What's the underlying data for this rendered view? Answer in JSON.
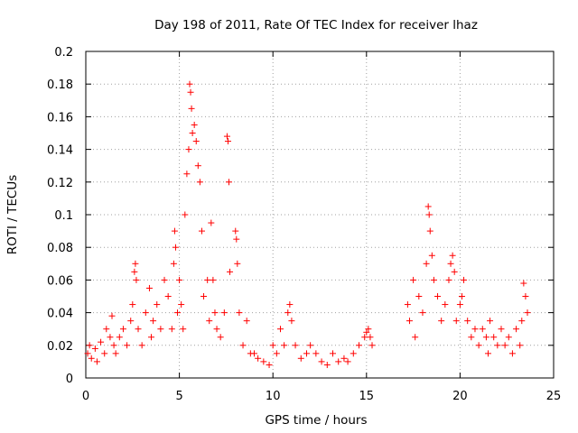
{
  "chart_data": {
    "type": "scatter",
    "title": "Day 198 of 2011, Rate Of TEC Index for receiver lhaz",
    "xlabel": "GPS time / hours",
    "ylabel": "ROTI / TECUs",
    "xlim": [
      0,
      25
    ],
    "ylim": [
      0,
      0.2
    ],
    "xticks": [
      "0",
      "5",
      "10",
      "15",
      "20",
      "25"
    ],
    "yticks": [
      "0",
      "0.02",
      "0.04",
      "0.06",
      "0.08",
      "0.1",
      "0.12",
      "0.14",
      "0.16",
      "0.18",
      "0.2"
    ],
    "grid": true,
    "marker": "+",
    "colors": {
      "series": "#ff0000",
      "grid": "#a0a0a0",
      "axis": "#000000"
    },
    "series": [
      {
        "x": [
          0.1,
          0.2,
          0.3,
          0.5,
          0.6,
          0.8,
          1.0,
          1.1,
          1.3,
          1.4,
          1.5,
          1.6,
          1.8,
          2.0,
          2.2,
          2.4,
          2.5,
          2.6,
          2.65,
          2.7,
          2.8,
          3.0,
          3.2,
          3.4,
          3.5,
          3.6,
          3.8,
          4.0,
          4.2,
          4.4,
          4.6,
          4.7,
          4.75,
          4.8,
          4.9,
          5.0,
          5.1,
          5.2,
          5.3,
          5.4,
          5.5,
          5.55,
          5.6,
          5.65,
          5.7,
          5.8,
          5.9,
          6.0,
          6.1,
          6.2,
          6.3,
          6.5,
          6.6,
          6.7,
          6.8,
          6.9,
          7.0,
          7.2,
          7.4,
          7.55,
          7.6,
          7.65,
          7.7,
          8.0,
          8.05,
          8.1,
          8.2,
          8.4,
          8.6,
          8.8,
          9.0,
          9.2,
          9.5,
          9.8,
          10.0,
          10.2,
          10.4,
          10.6,
          10.8,
          10.9,
          11.0,
          11.2,
          11.5,
          11.8,
          12.0,
          12.3,
          12.6,
          12.9,
          13.2,
          13.5,
          13.8,
          14.0,
          14.3,
          14.6,
          14.9,
          15.0,
          15.1,
          15.2,
          15.3,
          17.2,
          17.3,
          17.5,
          17.6,
          17.8,
          18.0,
          18.2,
          18.3,
          18.35,
          18.4,
          18.5,
          18.6,
          18.8,
          19.0,
          19.2,
          19.4,
          19.5,
          19.6,
          19.7,
          19.8,
          20.0,
          20.1,
          20.2,
          20.4,
          20.6,
          20.8,
          21.0,
          21.2,
          21.4,
          21.5,
          21.6,
          21.8,
          22.0,
          22.2,
          22.4,
          22.6,
          22.8,
          23.0,
          23.2,
          23.3,
          23.4,
          23.5,
          23.6
        ],
        "y": [
          0.015,
          0.02,
          0.012,
          0.018,
          0.01,
          0.022,
          0.015,
          0.03,
          0.025,
          0.038,
          0.02,
          0.015,
          0.025,
          0.03,
          0.02,
          0.035,
          0.045,
          0.065,
          0.07,
          0.06,
          0.03,
          0.02,
          0.04,
          0.055,
          0.025,
          0.035,
          0.045,
          0.03,
          0.06,
          0.05,
          0.03,
          0.07,
          0.09,
          0.08,
          0.04,
          0.06,
          0.045,
          0.03,
          0.1,
          0.125,
          0.14,
          0.18,
          0.175,
          0.165,
          0.15,
          0.155,
          0.145,
          0.13,
          0.12,
          0.09,
          0.05,
          0.06,
          0.035,
          0.095,
          0.06,
          0.04,
          0.03,
          0.025,
          0.04,
          0.148,
          0.145,
          0.12,
          0.065,
          0.09,
          0.085,
          0.07,
          0.04,
          0.02,
          0.035,
          0.015,
          0.015,
          0.012,
          0.01,
          0.008,
          0.02,
          0.015,
          0.03,
          0.02,
          0.04,
          0.045,
          0.035,
          0.02,
          0.012,
          0.015,
          0.02,
          0.015,
          0.01,
          0.008,
          0.015,
          0.01,
          0.012,
          0.01,
          0.015,
          0.02,
          0.025,
          0.028,
          0.03,
          0.025,
          0.02,
          0.045,
          0.035,
          0.06,
          0.025,
          0.05,
          0.04,
          0.07,
          0.105,
          0.1,
          0.09,
          0.075,
          0.06,
          0.05,
          0.035,
          0.045,
          0.06,
          0.07,
          0.075,
          0.065,
          0.035,
          0.045,
          0.05,
          0.06,
          0.035,
          0.025,
          0.03,
          0.02,
          0.03,
          0.025,
          0.015,
          0.035,
          0.025,
          0.02,
          0.03,
          0.02,
          0.025,
          0.015,
          0.03,
          0.02,
          0.035,
          0.058,
          0.05,
          0.04
        ]
      }
    ]
  }
}
